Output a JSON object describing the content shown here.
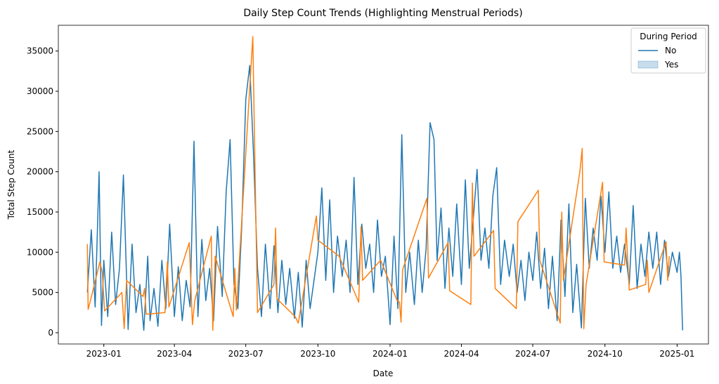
{
  "chart_data": {
    "type": "line",
    "title": "Daily Step Count Trends (Highlighting Menstrual Periods)",
    "x_label": "Date",
    "y_label": "Total Step Count",
    "legend_title": "During Period",
    "legend_position": "upper right",
    "xlim": [
      "2022-11-04",
      "2025-02-10"
    ],
    "xticks": [
      {
        "value": "2023-01-01",
        "label": "2023-01"
      },
      {
        "value": "2023-04-01",
        "label": "2023-04"
      },
      {
        "value": "2023-07-01",
        "label": "2023-07"
      },
      {
        "value": "2023-10-01",
        "label": "2023-10"
      },
      {
        "value": "2024-01-01",
        "label": "2024-01"
      },
      {
        "value": "2024-04-01",
        "label": "2024-04"
      },
      {
        "value": "2024-07-01",
        "label": "2024-07"
      },
      {
        "value": "2024-10-01",
        "label": "2024-10"
      },
      {
        "value": "2025-01-01",
        "label": "2025-01"
      }
    ],
    "ylim": [
      -1400,
      38200
    ],
    "yticks": [
      0,
      5000,
      10000,
      15000,
      20000,
      25000,
      30000,
      35000
    ],
    "series": [
      {
        "name": "No",
        "color": "#1f77b4",
        "x": [
          "2022-12-11",
          "2022-12-16",
          "2022-12-21",
          "2022-12-26",
          "2022-12-29",
          "2023-01-01",
          "2023-01-06",
          "2023-01-11",
          "2023-01-16",
          "2023-01-21",
          "2023-01-26",
          "2023-02-01",
          "2023-02-06",
          "2023-02-11",
          "2023-02-16",
          "2023-02-21",
          "2023-02-26",
          "2023-03-01",
          "2023-03-06",
          "2023-03-11",
          "2023-03-16",
          "2023-03-21",
          "2023-03-26",
          "2023-04-01",
          "2023-04-06",
          "2023-04-11",
          "2023-04-16",
          "2023-04-21",
          "2023-04-26",
          "2023-05-01",
          "2023-05-06",
          "2023-05-11",
          "2023-05-16",
          "2023-05-21",
          "2023-05-26",
          "2023-06-01",
          "2023-06-06",
          "2023-06-11",
          "2023-06-16",
          "2023-06-21",
          "2023-06-26",
          "2023-07-01",
          "2023-07-06",
          "2023-07-11",
          "2023-07-16",
          "2023-07-21",
          "2023-07-26",
          "2023-08-01",
          "2023-08-06",
          "2023-08-11",
          "2023-08-16",
          "2023-08-21",
          "2023-08-26",
          "2023-09-01",
          "2023-09-06",
          "2023-09-11",
          "2023-09-16",
          "2023-09-21",
          "2023-09-26",
          "2023-10-01",
          "2023-10-06",
          "2023-10-11",
          "2023-10-16",
          "2023-10-21",
          "2023-10-26",
          "2023-11-01",
          "2023-11-06",
          "2023-11-11",
          "2023-11-16",
          "2023-11-21",
          "2023-11-26",
          "2023-12-01",
          "2023-12-06",
          "2023-12-11",
          "2023-12-16",
          "2023-12-21",
          "2023-12-26",
          "2024-01-01",
          "2024-01-06",
          "2024-01-11",
          "2024-01-16",
          "2024-01-21",
          "2024-01-26",
          "2024-02-01",
          "2024-02-06",
          "2024-02-11",
          "2024-02-16",
          "2024-02-21",
          "2024-02-26",
          "2024-03-01",
          "2024-03-06",
          "2024-03-11",
          "2024-03-16",
          "2024-03-21",
          "2024-03-26",
          "2024-04-01",
          "2024-04-06",
          "2024-04-11",
          "2024-04-16",
          "2024-04-21",
          "2024-04-26",
          "2024-05-01",
          "2024-05-06",
          "2024-05-11",
          "2024-05-16",
          "2024-05-21",
          "2024-05-26",
          "2024-06-01",
          "2024-06-06",
          "2024-06-11",
          "2024-06-16",
          "2024-06-21",
          "2024-06-26",
          "2024-07-01",
          "2024-07-06",
          "2024-07-11",
          "2024-07-16",
          "2024-07-21",
          "2024-07-26",
          "2024-08-01",
          "2024-08-06",
          "2024-08-11",
          "2024-08-16",
          "2024-08-21",
          "2024-08-26",
          "2024-09-01",
          "2024-09-06",
          "2024-09-11",
          "2024-09-16",
          "2024-09-21",
          "2024-09-26",
          "2024-10-01",
          "2024-10-06",
          "2024-10-11",
          "2024-10-16",
          "2024-10-21",
          "2024-10-26",
          "2024-11-01",
          "2024-11-06",
          "2024-11-11",
          "2024-11-16",
          "2024-11-21",
          "2024-11-26",
          "2024-12-01",
          "2024-12-06",
          "2024-12-11",
          "2024-12-16",
          "2024-12-21",
          "2024-12-26",
          "2025-01-01",
          "2025-01-04",
          "2025-01-06",
          "2025-01-08"
        ],
        "values": [
          5000,
          12800,
          3200,
          20000,
          900,
          9000,
          2000,
          12500,
          3500,
          8000,
          19600,
          400,
          11000,
          2500,
          6000,
          300,
          9500,
          1500,
          5500,
          800,
          9000,
          3000,
          13500,
          2000,
          8200,
          1500,
          6500,
          3200,
          23800,
          2000,
          11600,
          4000,
          8000,
          1500,
          13200,
          4500,
          17500,
          24000,
          6000,
          3000,
          13500,
          29000,
          33200,
          22000,
          8000,
          2000,
          11000,
          3000,
          10800,
          2500,
          9000,
          3500,
          8000,
          1800,
          7500,
          700,
          9000,
          3000,
          6500,
          10000,
          18000,
          6500,
          16500,
          5000,
          12000,
          7000,
          11500,
          5000,
          19300,
          6000,
          13500,
          8000,
          11000,
          5000,
          14000,
          7000,
          9500,
          1000,
          12000,
          3000,
          24600,
          5000,
          10000,
          3500,
          11500,
          5000,
          10500,
          26100,
          24000,
          9000,
          15500,
          5500,
          13000,
          7000,
          16000,
          6000,
          19000,
          8000,
          14000,
          20300,
          9000,
          13000,
          8000,
          17000,
          20500,
          6000,
          11500,
          7000,
          11000,
          5000,
          9000,
          4000,
          10000,
          6500,
          12500,
          5500,
          10500,
          3000,
          9500,
          1500,
          14000,
          4500,
          16000,
          2500,
          8500,
          600,
          16700,
          8000,
          13000,
          9000,
          17000,
          10000,
          17500,
          8000,
          12000,
          7500,
          11000,
          6000,
          15800,
          5500,
          11000,
          7000,
          12500,
          8000,
          12500,
          6000,
          11500,
          7000,
          10000,
          7500,
          10000,
          7000,
          300
        ]
      },
      {
        "name": "Yes",
        "color": "#ff7f0e",
        "x": [
          "2022-12-11",
          "2022-12-12",
          "2022-12-15",
          "2022-12-27",
          "2022-12-30",
          "2023-01-02",
          "2023-01-24",
          "2023-01-27",
          "2023-01-30",
          "2023-02-20",
          "2023-02-22",
          "2023-02-24",
          "2023-03-20",
          "2023-03-23",
          "2023-03-25",
          "2023-04-20",
          "2023-04-24",
          "2023-04-27",
          "2023-05-18",
          "2023-05-20",
          "2023-05-23",
          "2023-06-15",
          "2023-06-17",
          "2023-06-19",
          "2023-07-10",
          "2023-07-13",
          "2023-07-16",
          "2023-08-06",
          "2023-08-08",
          "2023-08-10",
          "2023-09-02",
          "2023-09-06",
          "2023-09-29",
          "2023-10-01",
          "2023-10-28",
          "2023-11-22",
          "2023-11-25",
          "2023-11-27",
          "2023-12-20",
          "2024-01-10",
          "2024-01-13",
          "2024-01-15",
          "2024-01-17",
          "2024-02-17",
          "2024-02-19",
          "2024-03-15",
          "2024-03-17",
          "2024-04-13",
          "2024-04-15",
          "2024-04-17",
          "2024-05-12",
          "2024-05-14",
          "2024-06-10",
          "2024-06-12",
          "2024-07-08",
          "2024-07-10",
          "2024-08-05",
          "2024-08-07",
          "2024-08-09",
          "2024-08-30",
          "2024-09-02",
          "2024-09-04",
          "2024-09-07",
          "2024-09-28",
          "2024-09-30",
          "2024-10-26",
          "2024-10-28",
          "2024-11-01",
          "2024-11-22",
          "2024-11-24",
          "2024-11-26",
          "2024-12-18",
          "2024-12-20",
          "2024-12-22"
        ],
        "values": [
          11000,
          2900,
          4000,
          8800,
          7500,
          2700,
          5000,
          500,
          6500,
          4500,
          5500,
          2300,
          2500,
          8800,
          3200,
          11200,
          1000,
          4000,
          12000,
          300,
          9500,
          2000,
          8000,
          2800,
          36800,
          19000,
          2500,
          6000,
          13000,
          4200,
          2000,
          1200,
          14500,
          11500,
          9500,
          3800,
          13200,
          6500,
          9000,
          4000,
          3800,
          1300,
          7800,
          16700,
          6800,
          11200,
          5200,
          3500,
          18600,
          9500,
          12700,
          5500,
          3000,
          13800,
          17700,
          9000,
          1200,
          15000,
          6500,
          20000,
          22900,
          500,
          6000,
          18700,
          8800,
          8400,
          13000,
          5300,
          6000,
          9000,
          5000,
          11300,
          6500,
          9500
        ]
      }
    ]
  }
}
